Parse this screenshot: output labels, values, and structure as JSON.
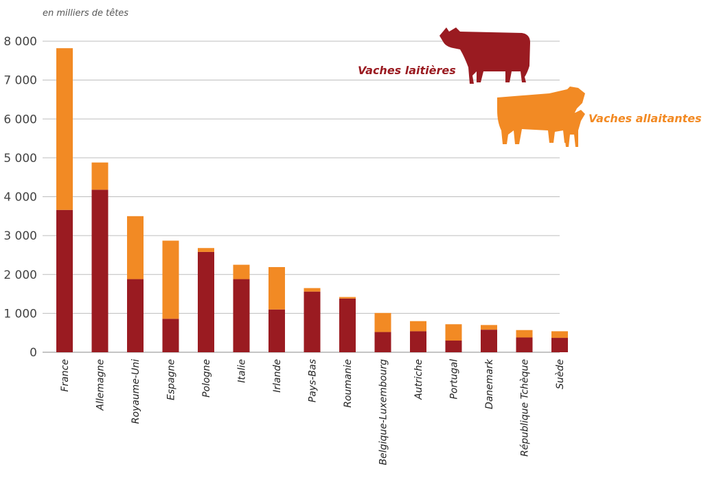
{
  "chart_data": {
    "type": "bar",
    "stacked": true,
    "unit_label": "en milliers de têtes",
    "categories": [
      "France",
      "Allemagne",
      "Royaume-Uni",
      "Espagne",
      "Pologne",
      "Italie",
      "Irlande",
      "Pays-Bas",
      "Roumanie",
      "Belgique-Luxembourg",
      "Autriche",
      "Portugal",
      "Danemark",
      "République Tchèque",
      "Suède"
    ],
    "series": [
      {
        "name": "Vaches laitières",
        "color": "#9a1b21",
        "values": [
          3660,
          4180,
          1880,
          860,
          2580,
          1880,
          1100,
          1560,
          1380,
          520,
          540,
          300,
          580,
          380,
          370
        ]
      },
      {
        "name": "Vaches allaitantes",
        "color": "#f28a24",
        "values": [
          4160,
          700,
          1620,
          2010,
          100,
          370,
          1090,
          90,
          40,
          490,
          260,
          420,
          120,
          190,
          170
        ]
      }
    ],
    "ylim": [
      0,
      8000
    ],
    "yticks": [
      0,
      1000,
      2000,
      3000,
      4000,
      5000,
      6000,
      7000,
      8000
    ],
    "ytick_labels": [
      "0",
      "1 000",
      "2 000",
      "3 000",
      "4 000",
      "5 000",
      "6 000",
      "7 000",
      "8 000"
    ],
    "grid": true,
    "legend": "top-right"
  }
}
